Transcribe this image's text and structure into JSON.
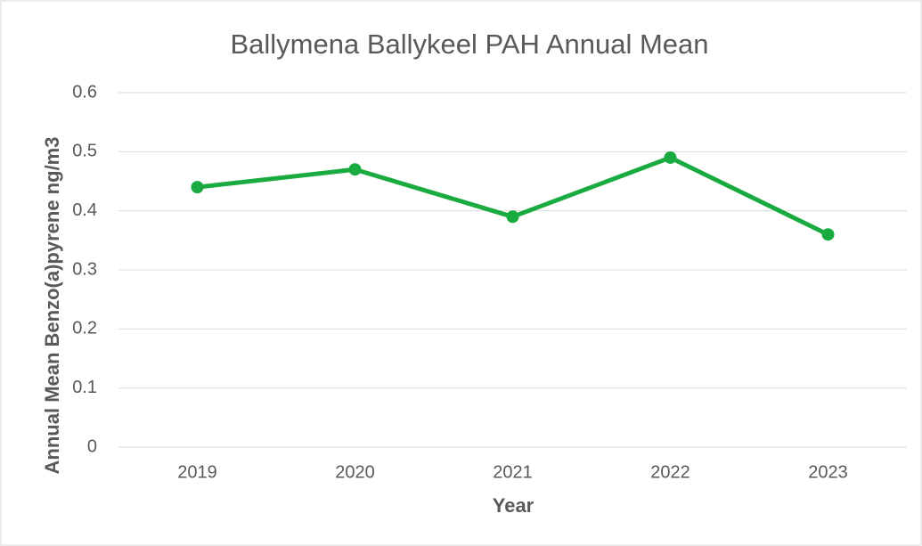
{
  "chart_data": {
    "type": "line",
    "title": "Ballymena Ballykeel PAH Annual Mean",
    "x_label": "Year",
    "y_label": "Annual Mean Benzo(a)pyrene ng/m3",
    "categories": [
      "2019",
      "2020",
      "2021",
      "2022",
      "2023"
    ],
    "series": [
      {
        "name": "Annual Mean",
        "color": "#1aab40",
        "values": [
          0.44,
          0.47,
          0.39,
          0.49,
          0.36
        ]
      }
    ],
    "ylim": [
      0,
      0.6
    ],
    "yticks": [
      0,
      0.1,
      0.2,
      0.3,
      0.4,
      0.5,
      0.6
    ],
    "grid": true
  }
}
